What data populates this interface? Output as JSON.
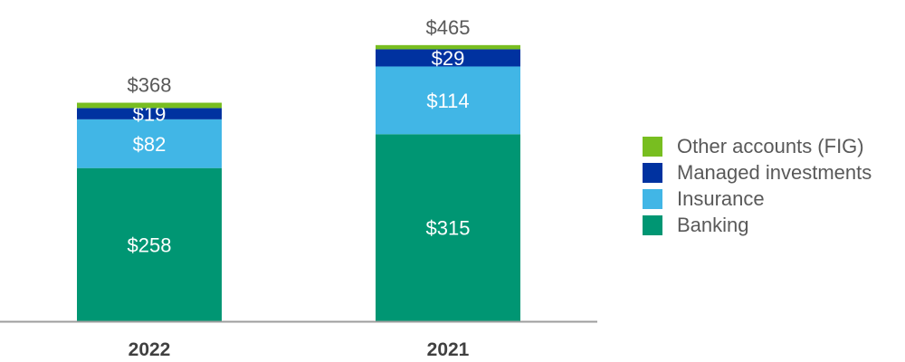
{
  "chart_data": {
    "type": "bar",
    "stacked": true,
    "categories": [
      "2022",
      "2021"
    ],
    "series": [
      {
        "name": "Banking",
        "values": [
          258,
          315
        ],
        "labels": [
          "$258",
          "$315"
        ],
        "color": "#009673"
      },
      {
        "name": "Insurance",
        "values": [
          82,
          114
        ],
        "labels": [
          "$82",
          "$114"
        ],
        "color": "#41b6e6"
      },
      {
        "name": "Managed investments",
        "values": [
          19,
          29
        ],
        "labels": [
          "$19",
          "$29"
        ],
        "color": "#0032a0"
      },
      {
        "name": "Other accounts (FIG)",
        "values": [
          9,
          7
        ],
        "labels": [
          "",
          ""
        ],
        "color": "#78be20"
      }
    ],
    "totals": [
      368,
      465
    ],
    "total_labels": [
      "$368",
      "$465"
    ],
    "ylim": [
      0,
      480
    ],
    "grid": false,
    "legend_position": "right",
    "legend_order": [
      "Other accounts (FIG)",
      "Managed investments",
      "Insurance",
      "Banking"
    ]
  },
  "colors": {
    "axis": "#9e9e9e",
    "total_label": "#595959",
    "category_label": "#404040",
    "segment_label": "#ffffff"
  }
}
